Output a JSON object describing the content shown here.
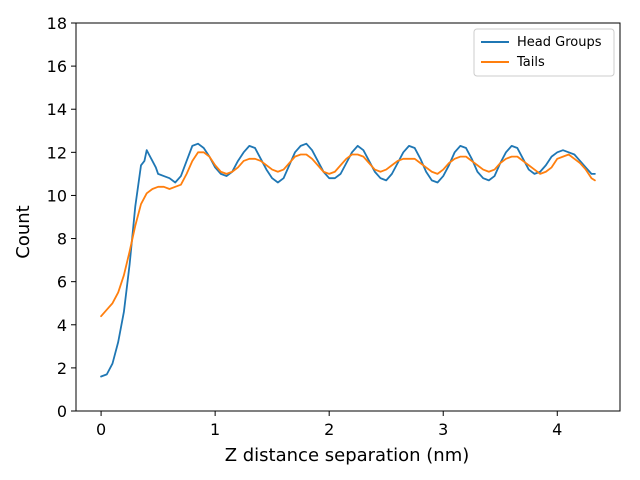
{
  "chart_data": {
    "type": "line",
    "xlabel": "Z distance separation (nm)",
    "ylabel": "Count",
    "xlim": [
      -0.22,
      4.55
    ],
    "ylim": [
      0,
      18
    ],
    "x_ticks": [
      "0",
      "1",
      "2",
      "3",
      "4"
    ],
    "y_ticks": [
      "0",
      "2",
      "4",
      "6",
      "8",
      "10",
      "12",
      "14",
      "16",
      "18"
    ],
    "grid": false,
    "legend_position": "top-right",
    "series": [
      {
        "name": "Head Groups",
        "color": "#1f77b4",
        "x": [
          0,
          0.05,
          0.1,
          0.15,
          0.2,
          0.25,
          0.3,
          0.35,
          0.38,
          0.4,
          0.42,
          0.45,
          0.48,
          0.5,
          0.55,
          0.6,
          0.65,
          0.7,
          0.75,
          0.8,
          0.85,
          0.9,
          0.95,
          1.0,
          1.05,
          1.1,
          1.15,
          1.2,
          1.25,
          1.3,
          1.35,
          1.4,
          1.45,
          1.5,
          1.55,
          1.6,
          1.65,
          1.7,
          1.75,
          1.8,
          1.85,
          1.9,
          1.95,
          2.0,
          2.05,
          2.1,
          2.15,
          2.2,
          2.25,
          2.3,
          2.35,
          2.4,
          2.45,
          2.5,
          2.55,
          2.6,
          2.65,
          2.7,
          2.75,
          2.8,
          2.85,
          2.9,
          2.95,
          3.0,
          3.05,
          3.1,
          3.15,
          3.2,
          3.25,
          3.3,
          3.35,
          3.4,
          3.45,
          3.5,
          3.55,
          3.6,
          3.65,
          3.7,
          3.75,
          3.8,
          3.85,
          3.9,
          3.95,
          4.0,
          4.05,
          4.1,
          4.15,
          4.2,
          4.25,
          4.3,
          4.33
        ],
        "values": [
          1.6,
          1.7,
          2.2,
          3.2,
          4.6,
          6.8,
          9.5,
          11.4,
          11.6,
          12.1,
          11.9,
          11.6,
          11.3,
          11.0,
          10.9,
          10.8,
          10.6,
          10.9,
          11.6,
          12.3,
          12.4,
          12.2,
          11.8,
          11.3,
          11.0,
          10.9,
          11.1,
          11.6,
          12.0,
          12.3,
          12.2,
          11.7,
          11.2,
          10.8,
          10.6,
          10.8,
          11.4,
          12.0,
          12.3,
          12.4,
          12.1,
          11.6,
          11.1,
          10.8,
          10.8,
          11.0,
          11.5,
          12.0,
          12.3,
          12.1,
          11.6,
          11.1,
          10.8,
          10.7,
          11.0,
          11.5,
          12.0,
          12.3,
          12.2,
          11.7,
          11.1,
          10.7,
          10.6,
          10.9,
          11.4,
          12.0,
          12.3,
          12.2,
          11.7,
          11.1,
          10.8,
          10.7,
          10.9,
          11.5,
          12.0,
          12.3,
          12.2,
          11.7,
          11.2,
          11.0,
          11.1,
          11.4,
          11.8,
          12.0,
          12.1,
          12.0,
          11.9,
          11.6,
          11.3,
          11.0,
          11.0
        ]
      },
      {
        "name": "Tails",
        "color": "#ff7f0e",
        "x": [
          0,
          0.05,
          0.1,
          0.15,
          0.2,
          0.25,
          0.3,
          0.35,
          0.4,
          0.45,
          0.5,
          0.55,
          0.6,
          0.65,
          0.7,
          0.75,
          0.8,
          0.85,
          0.9,
          0.95,
          1.0,
          1.05,
          1.1,
          1.15,
          1.2,
          1.25,
          1.3,
          1.35,
          1.4,
          1.45,
          1.5,
          1.55,
          1.6,
          1.65,
          1.7,
          1.75,
          1.8,
          1.85,
          1.9,
          1.95,
          2.0,
          2.05,
          2.1,
          2.15,
          2.2,
          2.25,
          2.3,
          2.35,
          2.4,
          2.45,
          2.5,
          2.55,
          2.6,
          2.65,
          2.7,
          2.75,
          2.8,
          2.85,
          2.9,
          2.95,
          3.0,
          3.05,
          3.1,
          3.15,
          3.2,
          3.25,
          3.3,
          3.35,
          3.4,
          3.45,
          3.5,
          3.55,
          3.6,
          3.65,
          3.7,
          3.75,
          3.8,
          3.85,
          3.9,
          3.95,
          4.0,
          4.05,
          4.1,
          4.15,
          4.2,
          4.25,
          4.3,
          4.33
        ],
        "values": [
          4.4,
          4.7,
          5.0,
          5.5,
          6.3,
          7.4,
          8.6,
          9.6,
          10.1,
          10.3,
          10.4,
          10.4,
          10.3,
          10.4,
          10.5,
          11.0,
          11.6,
          12.0,
          12.0,
          11.8,
          11.4,
          11.1,
          11.0,
          11.1,
          11.3,
          11.6,
          11.7,
          11.7,
          11.6,
          11.4,
          11.2,
          11.1,
          11.2,
          11.5,
          11.8,
          11.9,
          11.9,
          11.7,
          11.4,
          11.1,
          11.0,
          11.1,
          11.4,
          11.7,
          11.9,
          11.9,
          11.8,
          11.5,
          11.2,
          11.1,
          11.2,
          11.4,
          11.6,
          11.7,
          11.7,
          11.7,
          11.5,
          11.3,
          11.1,
          11.0,
          11.2,
          11.5,
          11.7,
          11.8,
          11.8,
          11.6,
          11.4,
          11.2,
          11.1,
          11.2,
          11.5,
          11.7,
          11.8,
          11.8,
          11.6,
          11.4,
          11.2,
          11.0,
          11.1,
          11.3,
          11.7,
          11.8,
          11.9,
          11.7,
          11.5,
          11.2,
          10.8,
          10.7
        ]
      }
    ]
  }
}
